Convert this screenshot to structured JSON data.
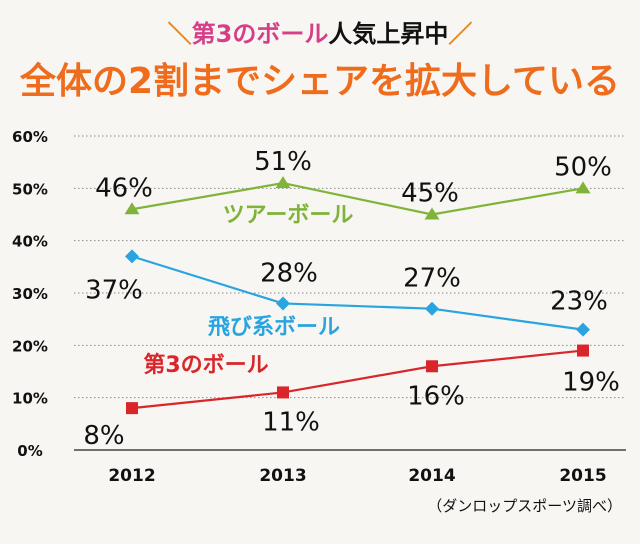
{
  "header": {
    "slash_left": "＼",
    "subtitle_highlight": "第3のボール",
    "subtitle_rest": "人気上昇中",
    "slash_right": "／",
    "title": "全体の2割までシェアを拡大している"
  },
  "source_note": "（ダンロップスポーツ調べ）",
  "chart_data": {
    "type": "line",
    "categories": [
      "2012",
      "2013",
      "2014",
      "2015"
    ],
    "ylim": [
      0,
      60
    ],
    "yticks": [
      0,
      10,
      20,
      30,
      40,
      50,
      60
    ],
    "ytick_labels": [
      "0%",
      "10%",
      "20%",
      "30%",
      "40%",
      "50%",
      "60%"
    ],
    "grid": true,
    "series": [
      {
        "name": "ツアーボール",
        "color": "#80b33a",
        "marker": "triangle",
        "values": [
          46,
          51,
          45,
          50
        ],
        "labels": [
          "46%",
          "51%",
          "45%",
          "50%"
        ]
      },
      {
        "name": "飛び系ボール",
        "color": "#2aa4e0",
        "marker": "diamond",
        "values": [
          37,
          28,
          27,
          23
        ],
        "labels": [
          "37%",
          "28%",
          "27%",
          "23%"
        ]
      },
      {
        "name": "第3のボール",
        "color": "#d8262b",
        "marker": "square",
        "values": [
          8,
          11,
          16,
          19
        ],
        "labels": [
          "8%",
          "11%",
          "16%",
          "19%"
        ]
      }
    ]
  }
}
